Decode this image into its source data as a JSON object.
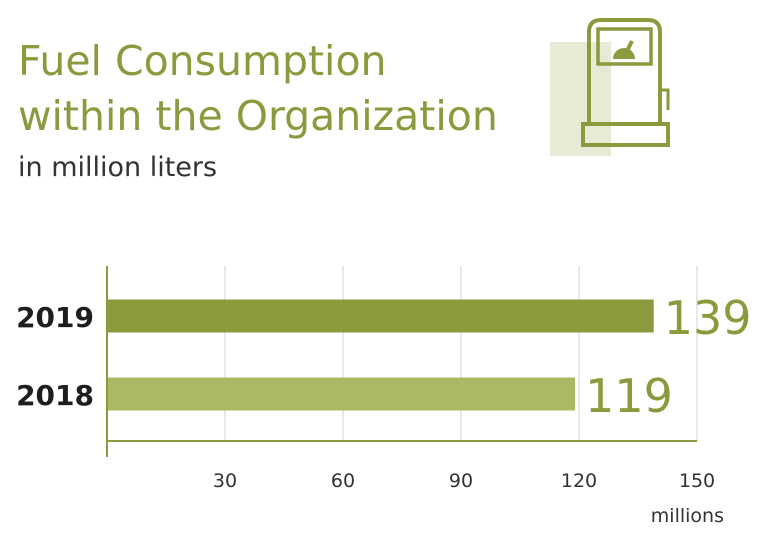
{
  "header": {
    "title_line1": "Fuel Consumption",
    "title_line2": "within the Organization",
    "subtitle": "in million liters",
    "icon": "fuel-pump-icon"
  },
  "colors": {
    "title": "#8a9a3c",
    "bar_2019": "#8a9a3c",
    "bar_2018": "#adb865",
    "axis": "#8a9a3c",
    "grid": "#d9d9d9",
    "icon_backdrop": "#e6ebd6"
  },
  "chart_data": {
    "type": "bar",
    "orientation": "horizontal",
    "categories": [
      "2019",
      "2018"
    ],
    "values": [
      139,
      119
    ],
    "value_labels": [
      "139",
      "119"
    ],
    "xlim": [
      0,
      150
    ],
    "xticks": [
      30,
      60,
      90,
      120,
      150
    ],
    "xlabel": "millions",
    "grid": true
  }
}
